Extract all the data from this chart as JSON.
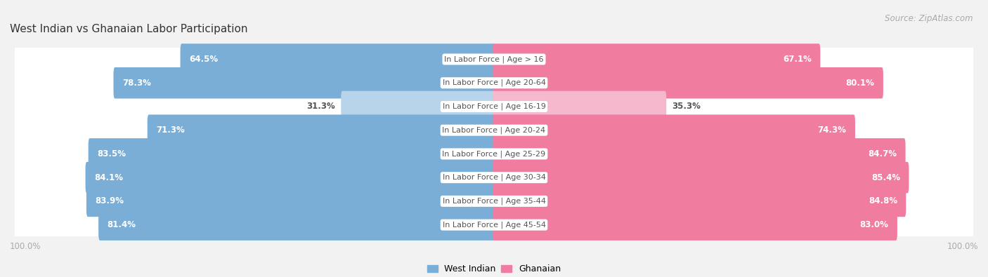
{
  "title": "West Indian vs Ghanaian Labor Participation",
  "source": "Source: ZipAtlas.com",
  "categories": [
    "In Labor Force | Age > 16",
    "In Labor Force | Age 20-64",
    "In Labor Force | Age 16-19",
    "In Labor Force | Age 20-24",
    "In Labor Force | Age 25-29",
    "In Labor Force | Age 30-34",
    "In Labor Force | Age 35-44",
    "In Labor Force | Age 45-54"
  ],
  "west_indian": [
    64.5,
    78.3,
    31.3,
    71.3,
    83.5,
    84.1,
    83.9,
    81.4
  ],
  "ghanaian": [
    67.1,
    80.1,
    35.3,
    74.3,
    84.7,
    85.4,
    84.8,
    83.0
  ],
  "blue_color": "#7aaed6",
  "blue_light": "#b8d4ea",
  "pink_color": "#f07ca0",
  "pink_light": "#f5b8cd",
  "bg_color": "#f2f2f2",
  "row_bg": "#ffffff",
  "label_color_dark": "#555555",
  "label_color_white": "#ffffff",
  "axis_label_color": "#aaaaaa",
  "title_color": "#333333",
  "max_val": 100.0,
  "legend_west": "West Indian",
  "legend_ghana": "Ghanaian"
}
